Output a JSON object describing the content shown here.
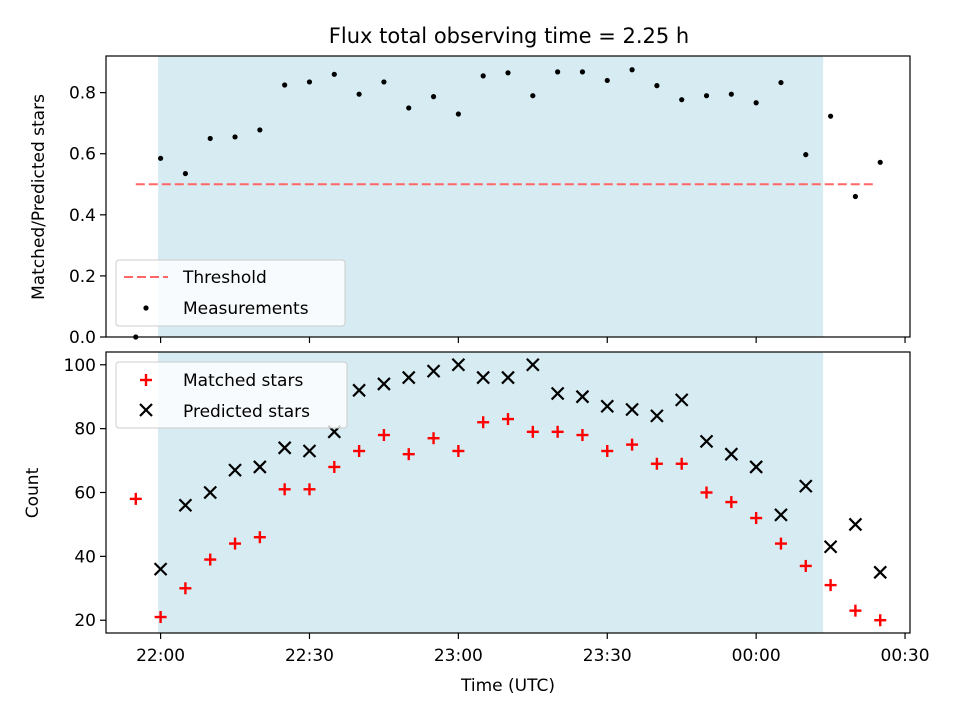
{
  "chart_data": [
    {
      "type": "scatter",
      "title": "Flux total observing time = 2.25 h",
      "xlabel": "Time (UTC)",
      "ylabel": "Matched/Predicted stars",
      "ylim": [
        0,
        0.92
      ],
      "xlim": [
        "21:49",
        "00:31"
      ],
      "yticks": [
        0.0,
        0.2,
        0.4,
        0.6,
        0.8
      ],
      "ytick_labels": [
        "0.0",
        "0.2",
        "0.4",
        "0.6",
        "0.8"
      ],
      "xticks": [
        "22:00",
        "22:30",
        "23:00",
        "23:30",
        "00:00",
        "00:30"
      ],
      "observing_window": {
        "start": "21:59.5",
        "end": "00:13.5",
        "color": "#add8e6"
      },
      "legend": {
        "placement": "lower-left"
      },
      "series": [
        {
          "name": "Threshold",
          "kind": "line",
          "style": "dashed",
          "color": "#ff6666",
          "x": [
            "21:55",
            "00:24"
          ],
          "values": [
            0.5,
            0.5
          ]
        },
        {
          "name": "Measurements",
          "kind": "scatter",
          "marker": "dot",
          "color": "#000000",
          "x": [
            "21:55",
            "22:00",
            "22:05",
            "22:10",
            "22:15",
            "22:20",
            "22:25",
            "22:30",
            "22:35",
            "22:40",
            "22:45",
            "22:50",
            "22:55",
            "23:00",
            "23:05",
            "23:10",
            "23:15",
            "23:20",
            "23:25",
            "23:30",
            "23:35",
            "23:40",
            "23:45",
            "23:50",
            "23:55",
            "00:00",
            "00:05",
            "00:10",
            "00:15",
            "00:20",
            "00:25"
          ],
          "values": [
            0.0,
            0.585,
            0.535,
            0.65,
            0.655,
            0.678,
            0.825,
            0.835,
            0.86,
            0.795,
            0.835,
            0.75,
            0.787,
            0.73,
            0.855,
            0.865,
            0.79,
            0.868,
            0.868,
            0.84,
            0.875,
            0.823,
            0.777,
            0.79,
            0.795,
            0.767,
            0.833,
            0.597,
            0.723,
            0.46,
            0.572
          ]
        }
      ]
    },
    {
      "type": "scatter",
      "xlabel": "Time (UTC)",
      "ylabel": "Count",
      "ylim": [
        16,
        104
      ],
      "yticks": [
        20,
        40,
        60,
        80,
        100
      ],
      "ytick_labels": [
        "20",
        "40",
        "60",
        "80",
        "100"
      ],
      "xticks": [
        "22:00",
        "22:30",
        "23:00",
        "23:30",
        "00:00",
        "00:30"
      ],
      "xtick_labels": [
        "22:00",
        "22:30",
        "23:00",
        "23:30",
        "00:00",
        "00:30"
      ],
      "legend": {
        "placement": "upper-left"
      },
      "series": [
        {
          "name": "Matched stars",
          "marker": "plus",
          "color": "#ff0000",
          "x": [
            "21:55",
            "22:00",
            "22:05",
            "22:10",
            "22:15",
            "22:20",
            "22:25",
            "22:30",
            "22:35",
            "22:40",
            "22:45",
            "22:50",
            "22:55",
            "23:00",
            "23:05",
            "23:10",
            "23:15",
            "23:20",
            "23:25",
            "23:30",
            "23:35",
            "23:40",
            "23:45",
            "23:50",
            "23:55",
            "00:00",
            "00:05",
            "00:10",
            "00:15",
            "00:20",
            "00:25"
          ],
          "values": [
            58,
            21,
            30,
            39,
            44,
            46,
            61,
            61,
            68,
            73,
            78,
            72,
            77,
            73,
            82,
            83,
            79,
            79,
            78,
            73,
            75,
            69,
            69,
            60,
            57,
            52,
            44,
            37,
            31,
            23,
            20
          ]
        },
        {
          "name": "Predicted stars",
          "marker": "x",
          "color": "#000000",
          "x": [
            "22:00",
            "22:05",
            "22:10",
            "22:15",
            "22:20",
            "22:25",
            "22:30",
            "22:35",
            "22:40",
            "22:45",
            "22:50",
            "22:55",
            "23:00",
            "23:05",
            "23:10",
            "23:15",
            "23:20",
            "23:25",
            "23:30",
            "23:35",
            "23:40",
            "23:45",
            "23:50",
            "23:55",
            "00:00",
            "00:05",
            "00:10",
            "00:15",
            "00:20",
            "00:25"
          ],
          "values": [
            36,
            56,
            60,
            67,
            68,
            74,
            73,
            79,
            92,
            94,
            96,
            98,
            100,
            96,
            96,
            100,
            91,
            90,
            87,
            86,
            84,
            89,
            76,
            72,
            68,
            53,
            62,
            43,
            50,
            35
          ]
        }
      ]
    }
  ]
}
